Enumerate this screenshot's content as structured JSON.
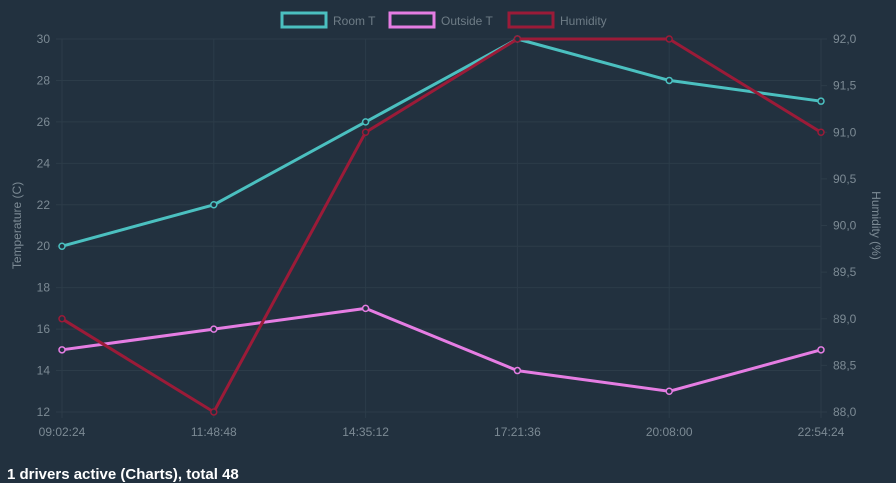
{
  "chart_data": {
    "type": "line",
    "x": [
      "09:02:24",
      "11:48:48",
      "14:35:12",
      "17:21:36",
      "20:08:00",
      "22:54:24"
    ],
    "y_left": {
      "label": "Temperature (C)",
      "ticks": [
        "12",
        "14",
        "16",
        "18",
        "20",
        "22",
        "24",
        "26",
        "28",
        "30"
      ],
      "range": [
        12,
        30
      ]
    },
    "y_right": {
      "label": "Humidity (%)",
      "ticks": [
        "88,0",
        "88,5",
        "89,0",
        "89,5",
        "90,0",
        "90,5",
        "91,0",
        "91,5",
        "92,0"
      ],
      "range": [
        88,
        92
      ]
    },
    "series": [
      {
        "name": "Room T",
        "axis": "left",
        "color": "#4bc0c0",
        "values": [
          20,
          22,
          26,
          30,
          28,
          27
        ]
      },
      {
        "name": "Outside T",
        "axis": "left",
        "color": "#e57de3",
        "values": [
          15,
          16,
          17,
          14,
          13,
          15
        ]
      },
      {
        "name": "Humidity",
        "axis": "right",
        "color": "#9b1b38",
        "values": [
          89.0,
          88.0,
          91.0,
          92.0,
          92.0,
          91.0
        ]
      }
    ],
    "grid": true,
    "legend": "top"
  },
  "footer": {
    "text": "1 drivers active (Charts), total 48"
  }
}
